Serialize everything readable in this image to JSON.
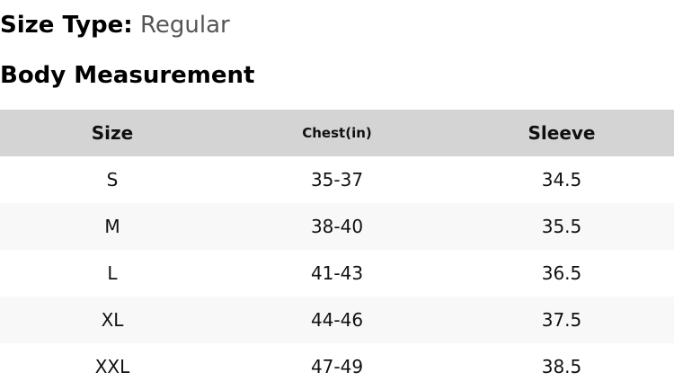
{
  "size_type": {
    "label": "Size Type:",
    "value": "Regular"
  },
  "section_title": "Body Measurement",
  "table": {
    "headers": [
      "Size",
      "Chest(in)",
      "Sleeve"
    ],
    "rows": [
      [
        "S",
        "35-37",
        "34.5"
      ],
      [
        "M",
        "38-40",
        "35.5"
      ],
      [
        "L",
        "41-43",
        "36.5"
      ],
      [
        "XL",
        "44-46",
        "37.5"
      ],
      [
        "XXL",
        "47-49",
        "38.5"
      ]
    ]
  },
  "colors": {
    "header_bg": "#d4d4d4",
    "stripe_bg": "#f8f8f8",
    "value_text": "#555555"
  }
}
